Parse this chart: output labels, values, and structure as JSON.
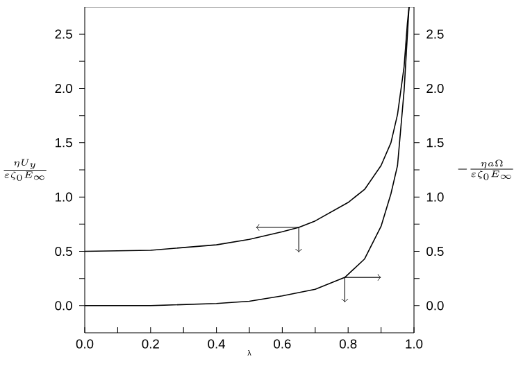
{
  "chart_data": {
    "type": "line",
    "xlabel": "λ",
    "ylabel": "\\frac{\\eta U_y}{\\varepsilon \\zeta_0 E_\\infty}",
    "y2label": "-\\frac{\\eta a \\Omega}{\\varepsilon \\zeta_0 E_\\infty}",
    "xlim": [
      0,
      1
    ],
    "ylim": [
      -0.25,
      2.75
    ],
    "y2lim": [
      -0.25,
      2.75
    ],
    "xticks": [
      "0.0",
      {
        "value": 0.1,
        "label": null
      },
      0.2,
      {
        "value": 0.3,
        "label": null
      },
      0.4,
      {
        "value": 0.5,
        "label": null
      },
      0.6,
      {
        "value": 0.7,
        "label": null
      },
      0.8,
      {
        "value": 0.9,
        "label": null
      },
      "1.0"
    ],
    "yticks": [
      "0.0",
      {
        "value": 0.25,
        "label": null
      },
      0.5,
      {
        "value": 0.75,
        "label": null
      },
      "1.0",
      {
        "value": 1.25,
        "label": null
      },
      1.5,
      {
        "value": 1.75,
        "label": null
      },
      "2.0",
      {
        "value": 2.25,
        "label": null
      },
      2.5
    ],
    "y2ticks": [
      "0.0",
      {
        "value": 0.25,
        "label": null
      },
      0.5,
      {
        "value": 0.75,
        "label": null
      },
      "1.0",
      {
        "value": 1.25,
        "label": null
      },
      1.5,
      {
        "value": 1.75,
        "label": null
      },
      "2.0",
      {
        "value": 2.25,
        "label": null
      },
      2.5
    ],
    "marker": "none",
    "line_style": "solid",
    "series": [
      {
        "color": "#000000",
        "axis": "y",
        "x": [
          0,
          0.2,
          0.4,
          0.5,
          0.6,
          0.65,
          0.7,
          0.8,
          0.85,
          0.9,
          0.93,
          0.95,
          0.97,
          0.98,
          0.985
        ],
        "values": [
          0.5,
          0.51,
          0.56,
          0.61,
          0.68,
          0.72,
          0.78,
          0.95,
          1.07,
          1.29,
          1.5,
          1.76,
          2.2,
          2.6,
          2.75
        ]
      },
      {
        "color": "#000000",
        "axis": "y2",
        "x": [
          0,
          0.2,
          0.4,
          0.5,
          0.6,
          0.7,
          0.79,
          0.85,
          0.9,
          0.93,
          0.95,
          0.97,
          0.985
        ],
        "values": [
          0,
          0,
          0.02,
          0.04,
          0.09,
          0.15,
          0.26,
          0.43,
          0.73,
          1.03,
          1.29,
          1.98,
          2.75
        ]
      }
    ]
  }
}
